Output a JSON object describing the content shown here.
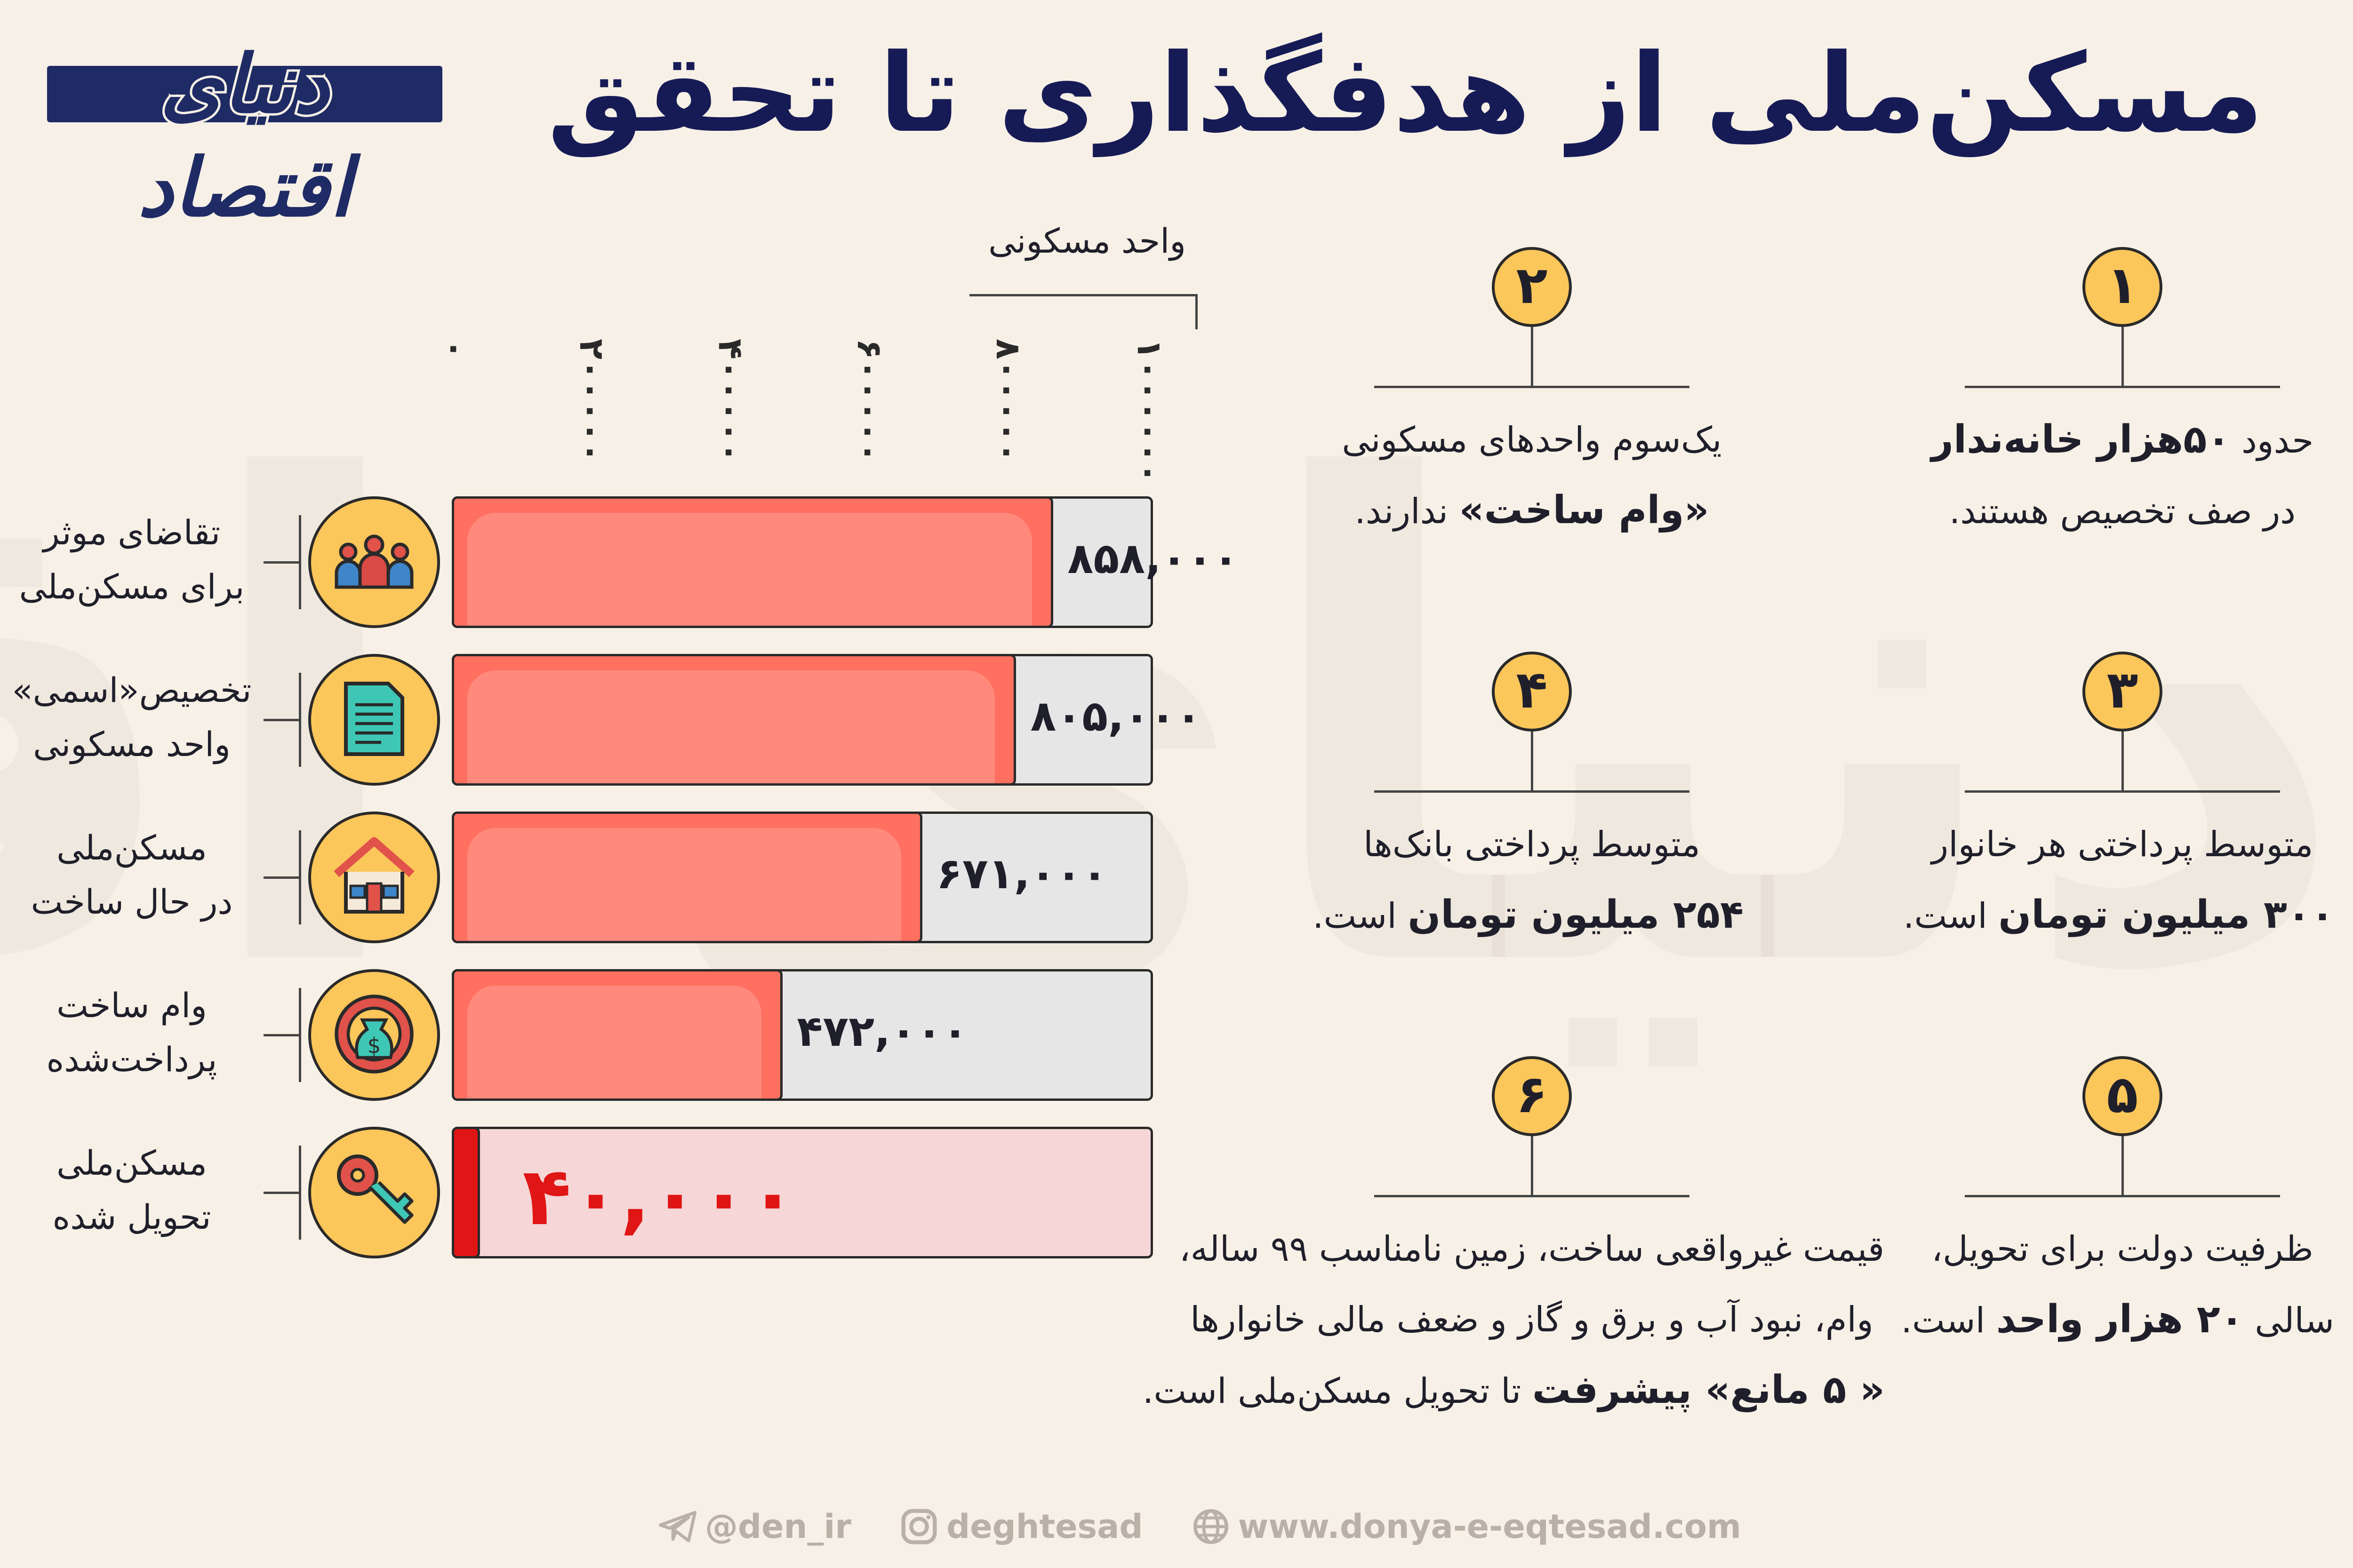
{
  "header": {
    "title": "مسکن‌ملی از هدفگذاری تا تحقق",
    "logo_text": "دنیای اقتصاد"
  },
  "chart_data": {
    "type": "bar",
    "orientation": "horizontal",
    "unit_label": "واحد مسکونی",
    "xlim": [
      0,
      1000000
    ],
    "ticks": [
      "۰",
      "۲۰۰۰۰۰",
      "۴۰۰۰۰۰",
      "۶۰۰۰۰۰",
      "۸۰۰۰۰۰",
      "۱۰۰۰۰۰۰"
    ],
    "categories": [
      {
        "line1": "تقاضای موثر",
        "line2": "برای مسکن‌ملی"
      },
      {
        "line1": "تخصیص«اسمی»",
        "line2": "واحد مسکونی"
      },
      {
        "line1": "مسکن‌ملی",
        "line2": "در حال ساخت"
      },
      {
        "line1": "وام ساخت",
        "line2": "پرداخت‌شده"
      },
      {
        "line1": "مسکن‌ملی",
        "line2": "تحویل شده"
      }
    ],
    "values": [
      858000,
      805000,
      671000,
      472000,
      40000
    ],
    "value_labels": [
      "۸۵۸,۰۰۰",
      "۸۰۵,۰۰۰",
      "۶۷۱,۰۰۰",
      "۴۷۲,۰۰۰",
      "۴۰,۰۰۰"
    ],
    "bar_color": "#ff7060",
    "highlight_color": "#e01515",
    "highlight_track": "#f6d6d6",
    "grid": false,
    "icons": [
      "people-group-icon",
      "document-icon",
      "house-icon",
      "money-bag-gear-icon",
      "key-icon"
    ]
  },
  "facts": [
    {
      "number": "۱",
      "line1_pre": "حدود ",
      "line1_bold": "۵۰هزار خانه‌ندار",
      "line1_post": "",
      "line2_pre": "در صف تخصیص هستند.",
      "line2_bold": "",
      "line2_post": ""
    },
    {
      "number": "۲",
      "line1_pre": "یک‌سوم واحدهای مسکونی",
      "line1_bold": "",
      "line1_post": "",
      "line2_pre": "",
      "line2_bold": "«وام ساخت»",
      "line2_post": " ندارند."
    },
    {
      "number": "۳",
      "line1_pre": "متوسط پرداختی هر خانوار",
      "line1_bold": "",
      "line1_post": "",
      "line2_pre": "",
      "line2_bold": "۳۰۰ میلیون تومان",
      "line2_post": " است."
    },
    {
      "number": "۴",
      "line1_pre": "متوسط پرداختی بانک‌ها",
      "line1_bold": "",
      "line1_post": "",
      "line2_pre": "",
      "line2_bold": "۲۵۴ میلیون تومان",
      "line2_post": " است."
    },
    {
      "number": "۵",
      "line1_pre": "ظرفیت دولت برای تحویل،",
      "line1_bold": "",
      "line1_post": "",
      "line2_pre": "سالی ",
      "line2_bold": "۲۰ هزار واحد",
      "line2_post": " است."
    },
    {
      "number": "۶",
      "line1_pre": "قیمت غیرواقعی ساخت، زمین نامناسب ۹۹ ساله،",
      "line1_bold": "",
      "line1_post": "",
      "line2_pre": "وام، نبود آب و برق و گاز و ضعف مالی خانوارها",
      "line2_bold": "",
      "line2_post": "",
      "line3_bold": "« ۵ مانع» پیشرفت",
      "line3_post": " تا تحویل مسکن‌ملی است."
    }
  ],
  "footer": {
    "telegram": "@den_ir",
    "instagram": "deghtesad",
    "website": "www.donya-e-eqtesad.com"
  }
}
